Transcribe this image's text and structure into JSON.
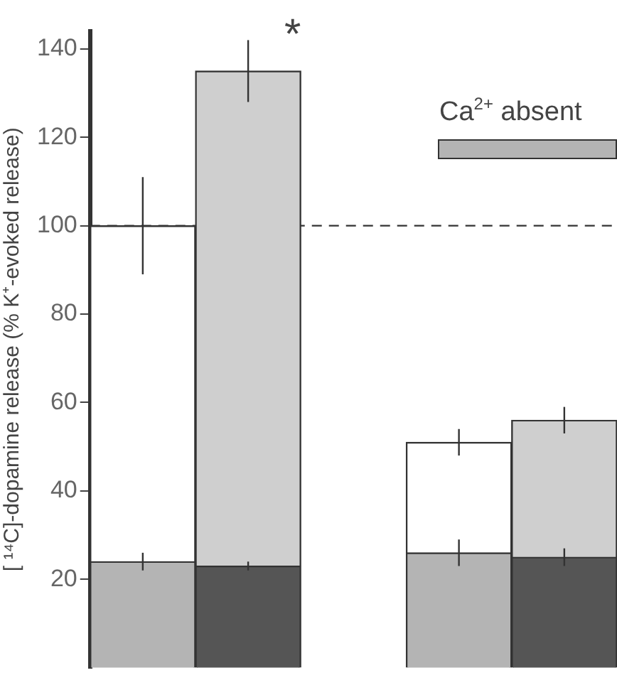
{
  "chart_data": {
    "type": "bar",
    "ylabel": "[ ¹⁴C]-dopamine release (% K⁺-evoked release)",
    "categories": [
      null,
      null,
      null,
      null,
      null
    ],
    "stacked": true,
    "series": [
      {
        "color": "#b4b4b4",
        "values": [
          24,
          null,
          null,
          26,
          null
        ],
        "errors": [
          2,
          null,
          null,
          3,
          null
        ]
      },
      {
        "color": "#555555",
        "values": [
          null,
          23,
          null,
          null,
          25
        ],
        "errors": [
          null,
          1,
          null,
          null,
          2
        ]
      },
      {
        "color": "#ffffff",
        "values": [
          76,
          null,
          null,
          25,
          null
        ],
        "errors": [
          11,
          null,
          null,
          3,
          null
        ]
      },
      {
        "color": "#cfcfcf",
        "values": [
          null,
          112,
          null,
          null,
          31
        ],
        "errors": [
          null,
          7,
          null,
          null,
          3
        ]
      }
    ],
    "ylim": [
      0,
      144
    ],
    "yticks": [
      20,
      40,
      60,
      80,
      100,
      120,
      140
    ],
    "tick_labels": "y",
    "grid": false,
    "legend": false,
    "ref_lines": [
      {
        "axis": "y",
        "value": 100,
        "line_style": "dashed"
      }
    ],
    "annotations": [
      "*",
      "Ca$^{2+}$ absent"
    ]
  }
}
